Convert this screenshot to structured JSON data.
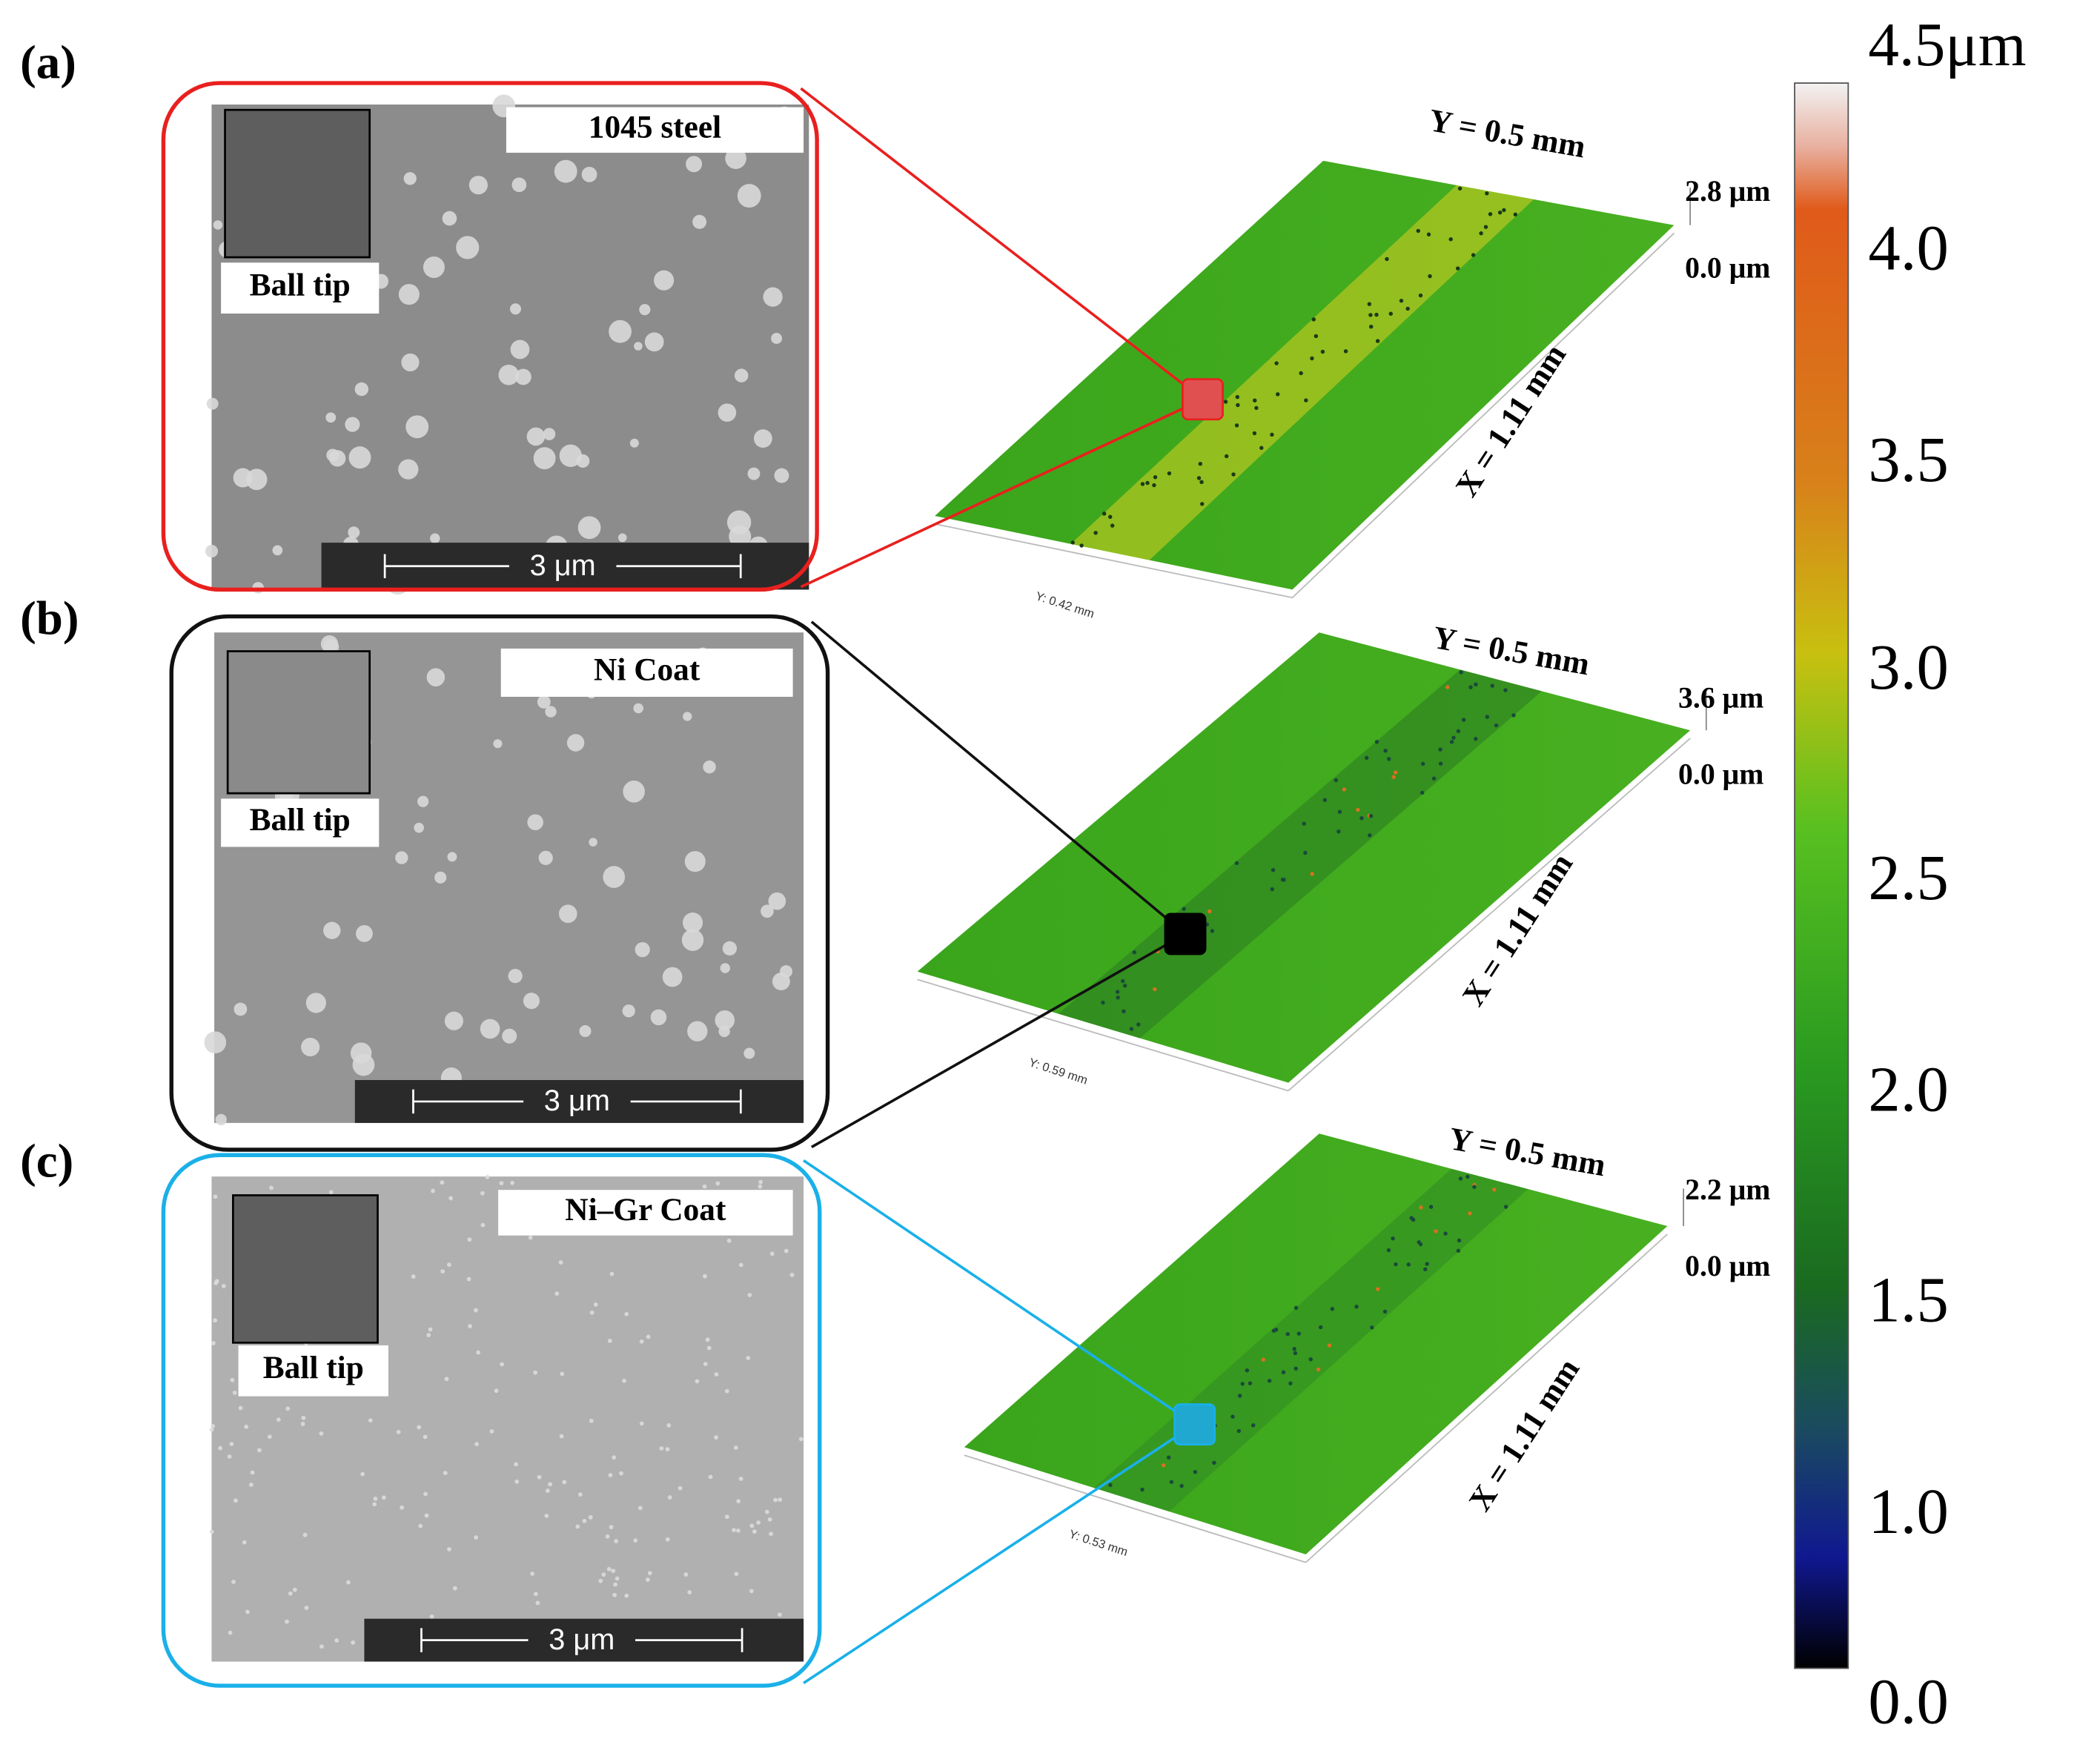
{
  "panels": [
    {
      "label": "(a)",
      "sample": "1045 steel",
      "inset_label": "Ball tip",
      "scale_bar": "3 μm",
      "y_dim": "Y = 0.5 mm",
      "x_dim": "X = 1.11 mm",
      "z_max": "2.8 μm",
      "z_min": "0.0 μm",
      "y_axis": "Y: 0.42 mm"
    },
    {
      "label": "(b)",
      "sample": "Ni Coat",
      "inset_label": "Ball tip",
      "scale_bar": "3 μm",
      "y_dim": "Y = 0.5 mm",
      "x_dim": "X = 1.11 mm",
      "z_max": "3.6 μm",
      "z_min": "0.0 μm",
      "y_axis": "Y: 0.59 mm"
    },
    {
      "label": "(c)",
      "sample": "Ni–Gr Coat",
      "inset_label": "Ball tip",
      "scale_bar": "3 μm",
      "y_dim": "Y = 0.5 mm",
      "x_dim": "X = 1.11 mm",
      "z_max": "2.2 μm",
      "z_min": "0.0 μm",
      "y_axis": "Y: 0.53 mm"
    }
  ],
  "colorbar": {
    "ticks": [
      "4.5μm",
      "4.0",
      "3.5",
      "3.0",
      "2.5",
      "2.0",
      "1.5",
      "1.0",
      "0.0"
    ]
  }
}
